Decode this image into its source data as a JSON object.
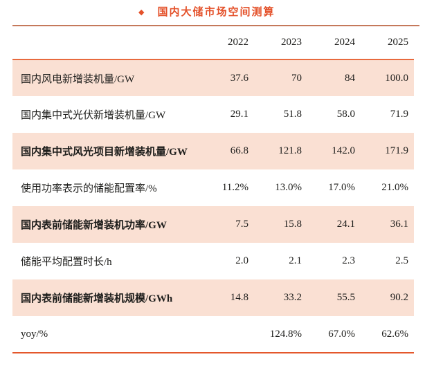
{
  "title": {
    "bullet": "◆",
    "text": "国内大储市场空间测算"
  },
  "colors": {
    "title": "#e4512a",
    "row_shade": "#fae0d3",
    "title_rule": "#c5795b",
    "header_rule": "#e86a3e",
    "bottom_rule": "#e4572c",
    "text": "#1d1d1b"
  },
  "chart_data": {
    "type": "table",
    "title": "国内大储市场空间测算",
    "columns": [
      "2022",
      "2023",
      "2024",
      "2025"
    ],
    "rows": [
      {
        "label": "国内风电新增装机量/GW",
        "values": [
          "37.6",
          "70",
          "84",
          "100.0"
        ],
        "bold": false,
        "shaded": true
      },
      {
        "label": "国内集中式光伏新增装机量/GW",
        "values": [
          "29.1",
          "51.8",
          "58.0",
          "71.9"
        ],
        "bold": false,
        "shaded": false
      },
      {
        "label": "国内集中式风光项目新增装机量/GW",
        "values": [
          "66.8",
          "121.8",
          "142.0",
          "171.9"
        ],
        "bold": true,
        "shaded": true
      },
      {
        "label": "使用功率表示的储能配置率/%",
        "values": [
          "11.2%",
          "13.0%",
          "17.0%",
          "21.0%"
        ],
        "bold": false,
        "shaded": false
      },
      {
        "label": "国内表前储能新增装机功率/GW",
        "values": [
          "7.5",
          "15.8",
          "24.1",
          "36.1"
        ],
        "bold": true,
        "shaded": true
      },
      {
        "label": "储能平均配置时长/h",
        "values": [
          "2.0",
          "2.1",
          "2.3",
          "2.5"
        ],
        "bold": false,
        "shaded": false
      },
      {
        "label": "国内表前储能新增装机规模/GWh",
        "values": [
          "14.8",
          "33.2",
          "55.5",
          "90.2"
        ],
        "bold": true,
        "shaded": true
      },
      {
        "label": "yoy/%",
        "values": [
          "",
          "124.8%",
          "67.0%",
          "62.6%"
        ],
        "bold": false,
        "shaded": false
      }
    ]
  }
}
